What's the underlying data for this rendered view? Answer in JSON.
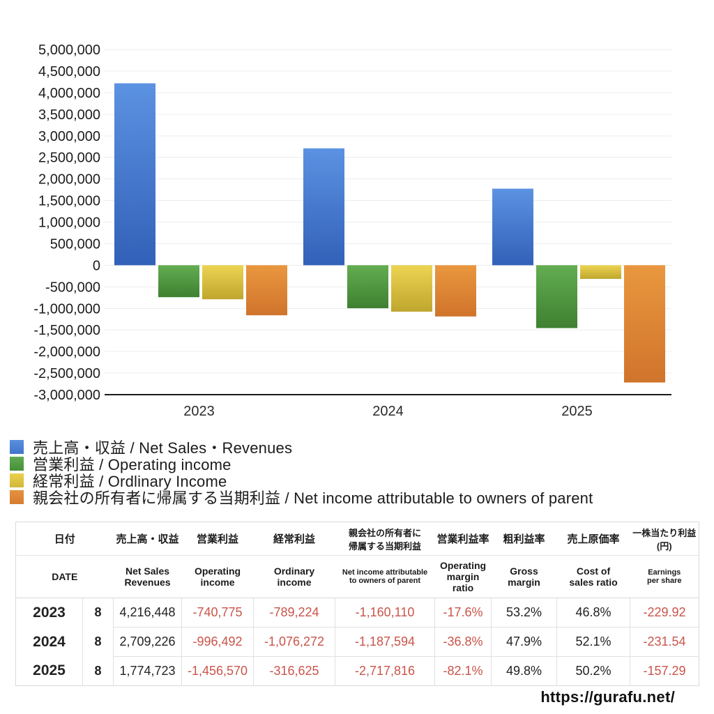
{
  "chart_data": {
    "type": "bar",
    "title": "",
    "xlabel": "",
    "ylabel": "",
    "categories": [
      "2023",
      "2024",
      "2025"
    ],
    "series": [
      {
        "name": "売上高・収益 / Net Sales・Revenues",
        "values": [
          4216448,
          2709226,
          1774723
        ],
        "color_top": "#5c92e2",
        "color_bottom": "#3161b8",
        "legend_color_top": "#5b8fdc",
        "legend_color_bottom": "#3f74cc"
      },
      {
        "name": "営業利益 / Operating income",
        "values": [
          -740775,
          -996492,
          -1456570
        ],
        "color_top": "#63ad51",
        "color_bottom": "#3e8031",
        "legend_color_top": "#5fa950",
        "legend_color_bottom": "#469038"
      },
      {
        "name": "経常利益 / Ordlinary Income",
        "values": [
          -789224,
          -1076272,
          -316625
        ],
        "color_top": "#edd452",
        "color_bottom": "#bfa62e",
        "legend_color_top": "#e9d04d",
        "legend_color_bottom": "#d2b838"
      },
      {
        "name": "親会社の所有者に帰属する当期利益 / Net income attributable to owners of parent",
        "values": [
          -1160110,
          -1187594,
          -2717816
        ],
        "color_top": "#e9973f",
        "color_bottom": "#d0742b",
        "legend_color_top": "#e4923e",
        "legend_color_bottom": "#d67c2f"
      }
    ],
    "ylim": [
      -3000000,
      5000000
    ],
    "ytick_step": 500000,
    "grid": true,
    "legend_position": "bottom-left",
    "gridline_color": "#ececec",
    "axis_color": "#1a1a1a"
  },
  "table": {
    "headers_jp": [
      "日付",
      "売上高・収益",
      "営業利益",
      "経常利益",
      "親会社の所有者に\n帰属する当期利益",
      "営業利益率",
      "粗利益率",
      "売上原価率",
      "一株当たり利益\n(円)"
    ],
    "headers_en": [
      "DATE",
      "Net Sales\nRevenues",
      "Operating\nincome",
      "Ordinary\nincome",
      "Net income attributable\nto owners of parent",
      "Operating\nmargin\nratio",
      "Gross\nmargin",
      "Cost of\nsales ratio",
      "Earnings\nper share"
    ],
    "rows": [
      {
        "year": "2023",
        "month": "8",
        "values": [
          "4,216,448",
          "-740,775",
          "-789,224",
          "-1,160,110",
          "-17.6%",
          "53.2%",
          "46.8%",
          "-229.92"
        ]
      },
      {
        "year": "2024",
        "month": "8",
        "values": [
          "2,709,226",
          "-996,492",
          "-1,076,272",
          "-1,187,594",
          "-36.8%",
          "47.9%",
          "52.1%",
          "-231.54"
        ]
      },
      {
        "year": "2025",
        "month": "8",
        "values": [
          "1,774,723",
          "-1,456,570",
          "-316,625",
          "-2,717,816",
          "-82.1%",
          "49.8%",
          "50.2%",
          "-157.29"
        ]
      }
    ]
  },
  "footer": {
    "url": "https://gurafu.net/"
  },
  "colors": {
    "negative_text": "#c9544a",
    "positive_text": "#222222"
  }
}
